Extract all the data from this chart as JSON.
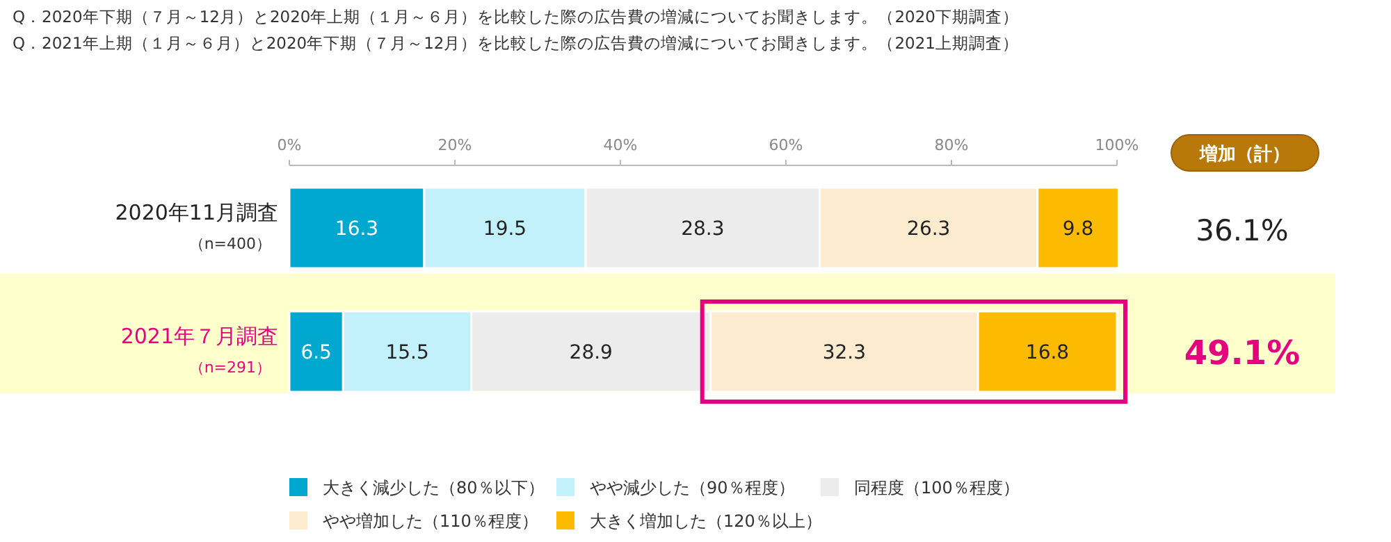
{
  "chart_data": {
    "type": "bar",
    "orientation": "horizontal",
    "stacked": true,
    "title": "Q．2020年下期（７月～12月）と2020年上期（１月～６月）を比較した際の広告費の増減についてお聞きします。（2020下期調査）",
    "subtitle": "Q．2021年上期（１月～６月）と2020年下期（７月～12月）を比較した際の広告費の増減についてお聞きします。（2021上期調査）",
    "categories": [
      "2020年11月調査",
      "2021年７月調査"
    ],
    "series": [
      {
        "name": "大きく減少した（80％以下）",
        "color": "#00a7cf",
        "values": [
          16.3,
          6.5
        ]
      },
      {
        "name": "やや減少した（90％程度）",
        "color": "#c2f0fb",
        "values": [
          19.5,
          15.5
        ]
      },
      {
        "name": "同程度（100％程度）",
        "color": "#ececec",
        "values": [
          28.3,
          28.9
        ]
      },
      {
        "name": "やや増加した（110％程度）",
        "color": "#fdebcf",
        "values": [
          26.3,
          32.3
        ]
      },
      {
        "name": "大きく増加した（120％以上）",
        "color": "#fcbb00",
        "values": [
          9.8,
          16.8
        ]
      }
    ],
    "xlim": [
      0,
      100
    ],
    "xticks": [
      {
        "value": 0,
        "label": "0%"
      },
      {
        "value": 20,
        "label": "20%"
      },
      {
        "value": 40,
        "label": "40%"
      },
      {
        "value": 60,
        "label": "60%"
      },
      {
        "value": 80,
        "label": "80%"
      },
      {
        "value": 100,
        "label": "100%"
      }
    ],
    "data_labels": true,
    "legend": "bottom",
    "bands": [
      {
        "axis": "y",
        "from": "2021年７月調査",
        "to": "2021年７月調査",
        "color": "#ffffcc"
      }
    ],
    "annotations": [
      "増加（計）",
      "（n=400）",
      "（n=291）",
      "36.1%",
      "49.1%"
    ]
  }
}
